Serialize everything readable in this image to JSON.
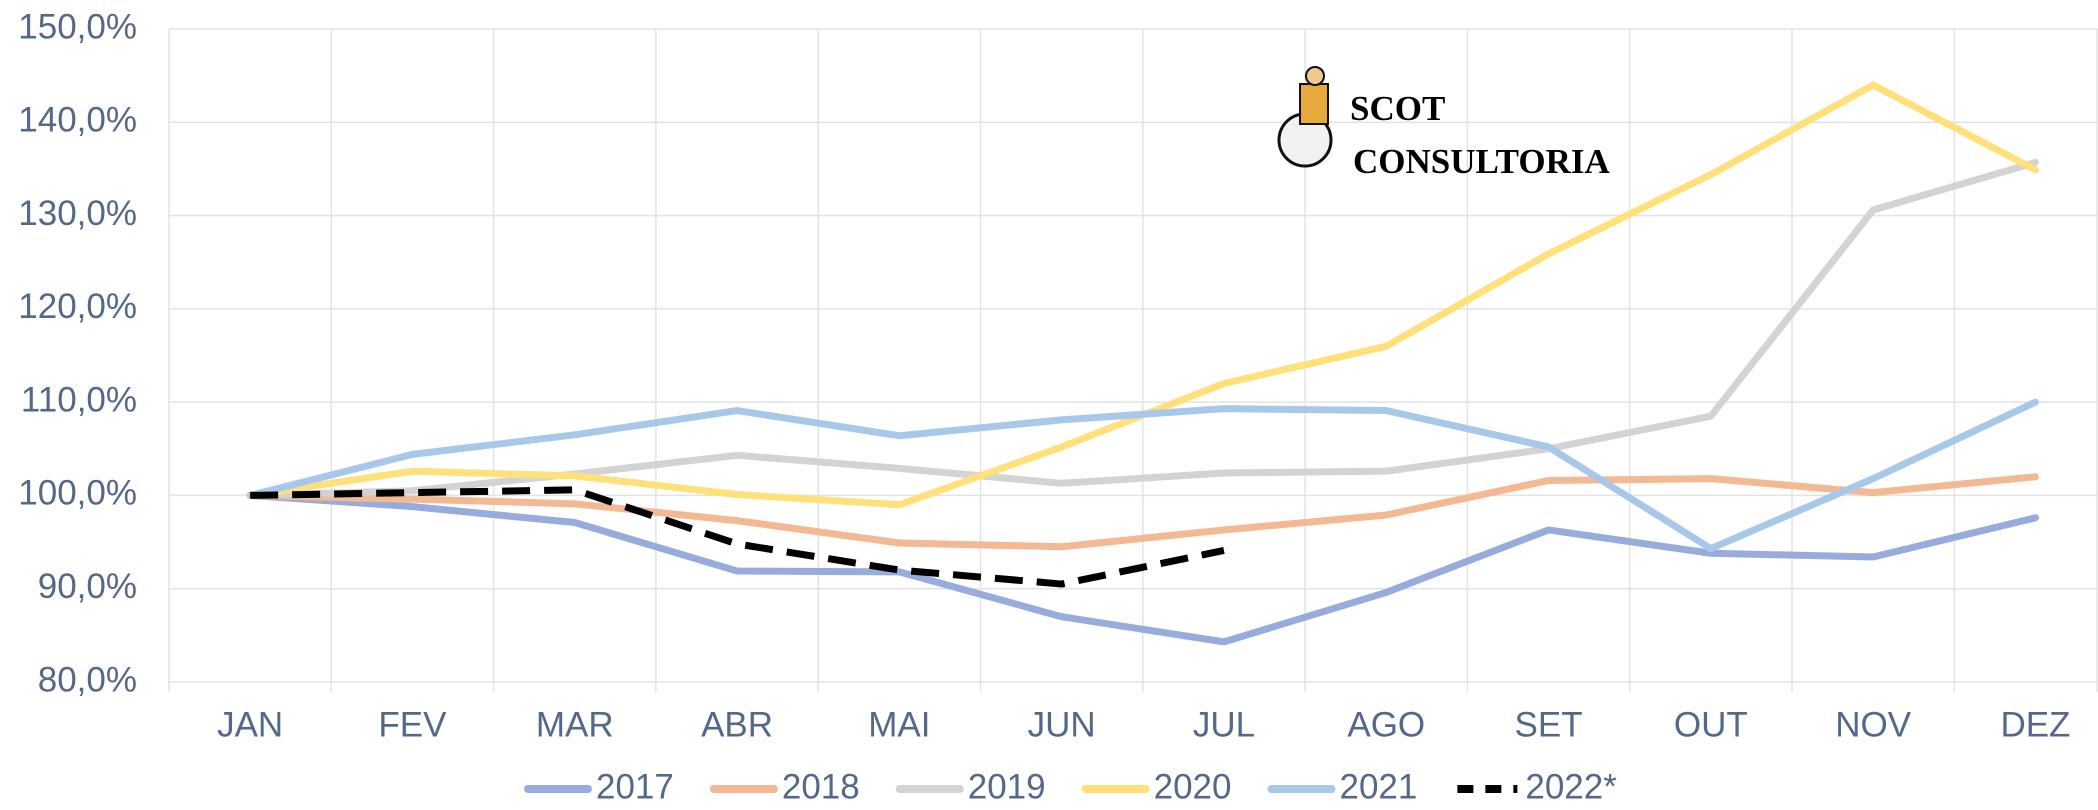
{
  "chart_data": {
    "type": "line",
    "categories": [
      "JAN",
      "FEV",
      "MAR",
      "ABR",
      "MAI",
      "JUN",
      "JUL",
      "AGO",
      "SET",
      "OUT",
      "NOV",
      "DEZ"
    ],
    "series": [
      {
        "name": "2017",
        "color": "#97acdc",
        "values": [
          100,
          98.8,
          97.1,
          91.9,
          91.8,
          87.0,
          84.3,
          89.6,
          96.3,
          93.8,
          93.4,
          97.6
        ]
      },
      {
        "name": "2018",
        "color": "#f4b893",
        "values": [
          100,
          99.6,
          99.1,
          97.3,
          94.9,
          94.5,
          96.3,
          97.9,
          101.6,
          101.8,
          100.3,
          102.0
        ]
      },
      {
        "name": "2019",
        "color": "#d3d3d3",
        "values": [
          100,
          100.5,
          102.3,
          104.3,
          102.9,
          101.3,
          102.4,
          102.6,
          105.0,
          108.5,
          130.6,
          135.7
        ]
      },
      {
        "name": "2020",
        "color": "#ffe07a",
        "values": [
          100,
          102.6,
          102.1,
          100.1,
          99.0,
          105.2,
          112.0,
          116.0,
          125.9,
          134.4,
          144.0,
          134.9
        ]
      },
      {
        "name": "2021",
        "color": "#a8c8ea",
        "values": [
          100,
          104.4,
          106.5,
          109.1,
          106.4,
          108.1,
          109.3,
          109.1,
          105.2,
          94.3,
          101.8,
          110.0
        ]
      },
      {
        "name": "2022*",
        "color": "#000000",
        "dashed": true,
        "values": [
          100,
          100.3,
          100.6,
          94.8,
          92.0,
          90.5,
          94.1,
          null,
          null,
          null,
          null,
          null
        ]
      }
    ],
    "ylim": [
      80,
      150
    ],
    "yticks": [
      {
        "value": 80,
        "label": "80,0%"
      },
      {
        "value": 90,
        "label": "90,0%"
      },
      {
        "value": 100,
        "label": "100,0%"
      },
      {
        "value": 110,
        "label": "110,0%"
      },
      {
        "value": 120,
        "label": "120,0%"
      },
      {
        "value": 130,
        "label": "130,0%"
      },
      {
        "value": 140,
        "label": "140,0%"
      },
      {
        "value": 150,
        "label": "150,0%"
      }
    ],
    "grid": true,
    "legend": "bottom",
    "logo": {
      "name": "SCOT",
      "tagline": "CONSULTORIA"
    }
  }
}
